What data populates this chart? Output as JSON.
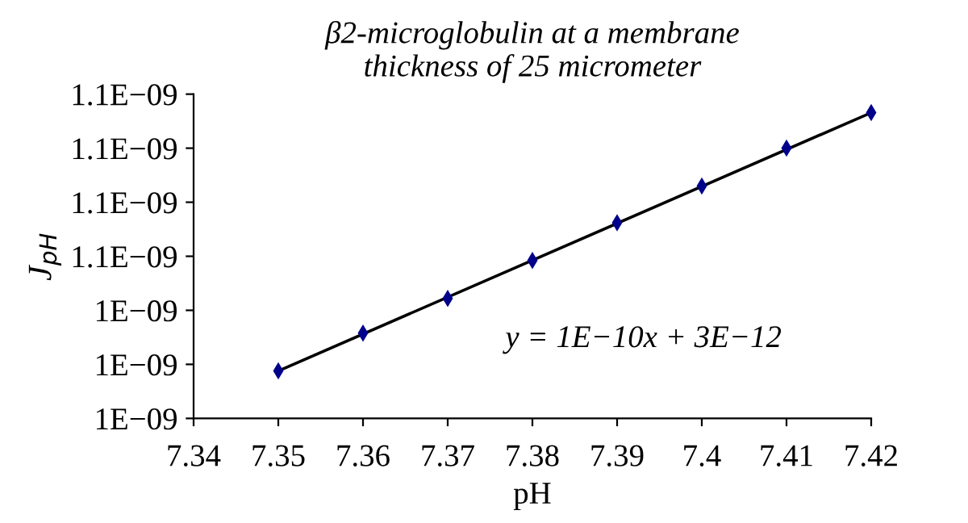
{
  "chart_data": {
    "type": "scatter",
    "title": "β2-microglobulin at a membrane\nthickness of 25 micrometer",
    "xlabel": "pH",
    "ylabel": "J$_{pH}$",
    "annotations": [
      "y = 1E−10x + 3E−12"
    ],
    "series": [
      {
        "color": "#00008b",
        "marker": "diamond",
        "x": [
          7.35,
          7.36,
          7.37,
          7.38,
          7.39,
          7.4,
          7.41,
          7.42
        ],
        "values": [
          1.04773e-09,
          1.04871e-09,
          1.04961e-09,
          1.05059e-09,
          1.05157e-09,
          1.05252e-09,
          1.0535e-09,
          1.05442e-09
        ]
      },
      {
        "type": "line",
        "color": "#000000",
        "marker": "none",
        "x": [
          7.35,
          7.42
        ],
        "values": [
          1.04773e-09,
          1.05442e-09
        ]
      }
    ],
    "xlim": [
      7.34,
      7.42
    ],
    "xticks": [
      7.34,
      7.35,
      7.36,
      7.37,
      7.38,
      7.39,
      7.4,
      7.41,
      7.42
    ],
    "ylim": [
      1.0465e-09,
      1.0549e-09
    ],
    "yticks": [
      {
        "value": 1.0465e-09,
        "label": "1E−09"
      },
      {
        "value": 1.0479e-09,
        "label": "1E−09"
      },
      {
        "value": 1.0493e-09,
        "label": "1E−09"
      },
      {
        "value": 1.0507e-09,
        "label": "1.1E−09"
      },
      {
        "value": 1.0521e-09,
        "label": "1.1E−09"
      },
      {
        "value": 1.0535e-09,
        "label": "1.1E−09"
      },
      {
        "value": 1.0549e-09,
        "label": "1.1E−09"
      }
    ],
    "grid": false,
    "legend": false
  }
}
